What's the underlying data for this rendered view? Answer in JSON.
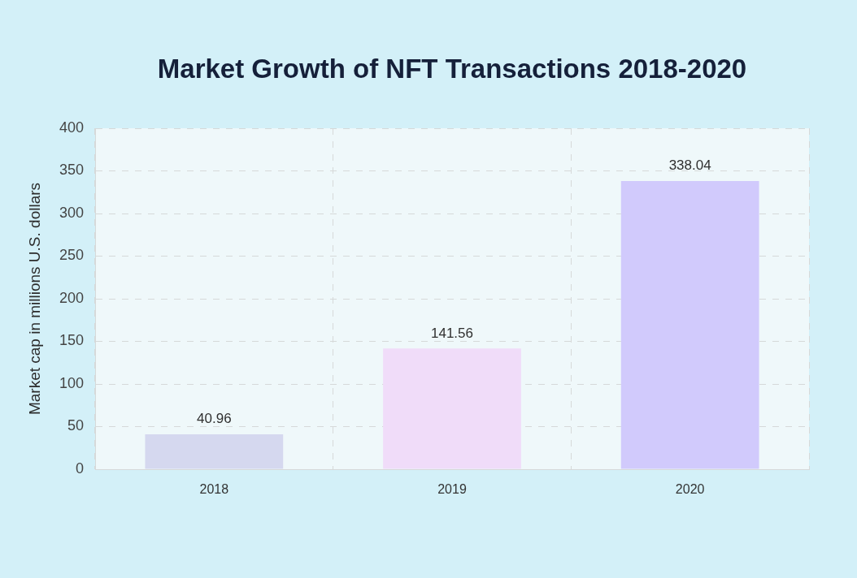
{
  "chart_data": {
    "type": "bar",
    "title": "Market Growth of NFT Transactions 2018-2020",
    "ylabel": "Market cap in millions U.S. dollars",
    "categories": [
      "2018",
      "2019",
      "2020"
    ],
    "values": [
      40.96,
      141.56,
      338.04
    ],
    "colors": [
      "#d5d8ef",
      "#f0dcf9",
      "#d1cafc"
    ],
    "ylim": [
      0,
      400
    ],
    "yticks": [
      0,
      50,
      100,
      150,
      200,
      250,
      300,
      350,
      400
    ],
    "grid": true,
    "data_labels": true
  }
}
